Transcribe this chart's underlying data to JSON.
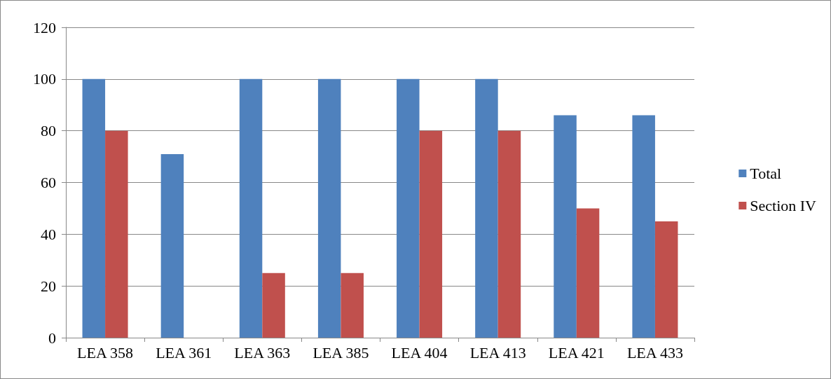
{
  "chart_data": {
    "type": "bar",
    "categories": [
      "LEA 358",
      "LEA 361",
      "LEA 363",
      "LEA 385",
      "LEA 404",
      "LEA 413",
      "LEA 421",
      "LEA 433"
    ],
    "series": [
      {
        "name": "Total",
        "color": "#4f81bd",
        "values": [
          100,
          71,
          100,
          100,
          100,
          100,
          86,
          86
        ]
      },
      {
        "name": "Section IV",
        "color": "#c0504d",
        "values": [
          80,
          0,
          25,
          25,
          80,
          80,
          50,
          45
        ]
      }
    ],
    "ylim": [
      0,
      120
    ],
    "yticks": [
      0,
      20,
      40,
      60,
      80,
      100,
      120
    ],
    "grid": "y",
    "legend": "right"
  }
}
